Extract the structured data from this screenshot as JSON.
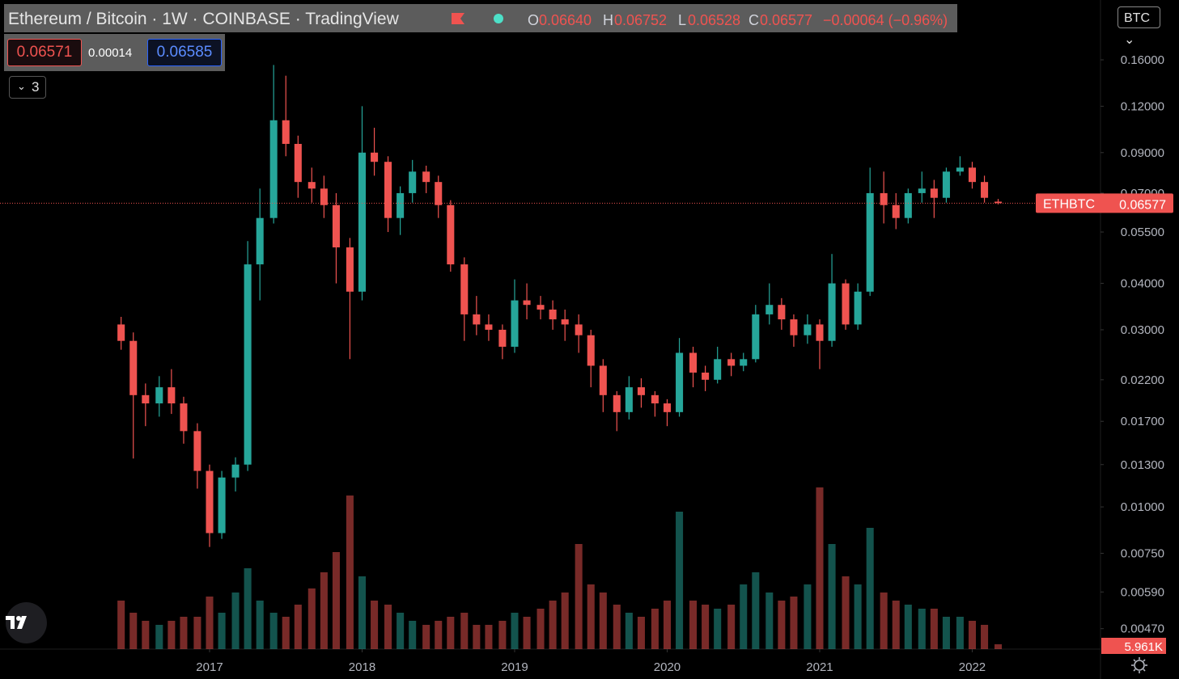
{
  "legend": {
    "title": "Ethereum / Bitcoin · 1W · COINBASE · TradingView",
    "open_key": "O",
    "open": "0.06640",
    "high_key": "H",
    "high": "0.06752",
    "low_key": "L",
    "low": "0.06528",
    "close_key": "C",
    "close": "0.06577",
    "change": "−0.00064 (−0.96%)"
  },
  "trade": {
    "sell": "0.06571",
    "spread": "0.00014",
    "buy": "0.06585"
  },
  "indicators_count": "3",
  "currency": "BTC",
  "symbol_label": "ETHBTC",
  "chart_data": {
    "type": "candlestick",
    "log_scale": true,
    "up_color": "#26a69a",
    "down_color": "#ef5350",
    "x": [
      2016.42,
      2016.5,
      2016.58,
      2016.67,
      2016.75,
      2016.83,
      2016.92,
      2017,
      2017.08,
      2017.17,
      2017.25,
      2017.33,
      2017.42,
      2017.5,
      2017.58,
      2017.67,
      2017.75,
      2017.83,
      2017.92,
      2018,
      2018.08,
      2018.17,
      2018.25,
      2018.33,
      2018.42,
      2018.5,
      2018.58,
      2018.67,
      2018.75,
      2018.83,
      2018.92,
      2019,
      2019.08,
      2019.17,
      2019.25,
      2019.33,
      2019.42,
      2019.5,
      2019.58,
      2019.67,
      2019.75,
      2019.83,
      2019.92,
      2020,
      2020.08,
      2020.17,
      2020.25,
      2020.33,
      2020.42,
      2020.5,
      2020.58,
      2020.67,
      2020.75,
      2020.83,
      2020.92,
      2021,
      2021.08,
      2021.17,
      2021.25,
      2021.33,
      2021.42,
      2021.5,
      2021.58,
      2021.67,
      2021.75,
      2021.83,
      2021.92,
      2022,
      2022.08,
      2022.17
    ],
    "open": [
      0.031,
      0.028,
      0.02,
      0.019,
      0.021,
      0.019,
      0.016,
      0.0125,
      0.0085,
      0.012,
      0.013,
      0.045,
      0.06,
      0.11,
      0.095,
      0.075,
      0.072,
      0.065,
      0.05,
      0.038,
      0.09,
      0.085,
      0.06,
      0.07,
      0.08,
      0.075,
      0.065,
      0.045,
      0.033,
      0.031,
      0.03,
      0.027,
      0.036,
      0.035,
      0.034,
      0.032,
      0.031,
      0.029,
      0.024,
      0.02,
      0.018,
      0.021,
      0.02,
      0.019,
      0.018,
      0.026,
      0.023,
      0.022,
      0.025,
      0.024,
      0.025,
      0.033,
      0.035,
      0.032,
      0.029,
      0.031,
      0.028,
      0.04,
      0.031,
      0.038,
      0.07,
      0.065,
      0.06,
      0.07,
      0.072,
      0.068,
      0.08,
      0.082,
      0.075,
      0.0664
    ],
    "high": [
      0.0325,
      0.0295,
      0.0215,
      0.0225,
      0.0235,
      0.0198,
      0.0168,
      0.013,
      0.0125,
      0.0136,
      0.052,
      0.072,
      0.155,
      0.145,
      0.1,
      0.082,
      0.078,
      0.07,
      0.053,
      0.12,
      0.105,
      0.088,
      0.073,
      0.086,
      0.083,
      0.078,
      0.067,
      0.047,
      0.037,
      0.033,
      0.031,
      0.041,
      0.04,
      0.037,
      0.036,
      0.034,
      0.033,
      0.03,
      0.025,
      0.0205,
      0.0225,
      0.0222,
      0.0205,
      0.0195,
      0.0285,
      0.027,
      0.024,
      0.027,
      0.026,
      0.026,
      0.035,
      0.04,
      0.0365,
      0.033,
      0.033,
      0.032,
      0.048,
      0.041,
      0.04,
      0.082,
      0.08,
      0.07,
      0.072,
      0.08,
      0.076,
      0.082,
      0.088,
      0.085,
      0.078,
      0.06752
    ],
    "low": [
      0.0265,
      0.0135,
      0.0165,
      0.0175,
      0.0178,
      0.0148,
      0.0112,
      0.0078,
      0.0082,
      0.011,
      0.0125,
      0.036,
      0.058,
      0.088,
      0.068,
      0.066,
      0.06,
      0.04,
      0.025,
      0.036,
      0.078,
      0.055,
      0.054,
      0.066,
      0.07,
      0.06,
      0.043,
      0.028,
      0.029,
      0.028,
      0.025,
      0.026,
      0.032,
      0.032,
      0.03,
      0.028,
      0.026,
      0.021,
      0.018,
      0.016,
      0.0172,
      0.0185,
      0.0175,
      0.0165,
      0.0175,
      0.021,
      0.0205,
      0.0215,
      0.0225,
      0.0232,
      0.0245,
      0.031,
      0.03,
      0.027,
      0.0275,
      0.0235,
      0.027,
      0.03,
      0.03,
      0.037,
      0.058,
      0.056,
      0.058,
      0.066,
      0.06,
      0.066,
      0.078,
      0.072,
      0.066,
      0.06528
    ],
    "close": [
      0.028,
      0.02,
      0.019,
      0.021,
      0.019,
      0.016,
      0.0125,
      0.0085,
      0.012,
      0.013,
      0.045,
      0.06,
      0.11,
      0.095,
      0.075,
      0.072,
      0.065,
      0.05,
      0.038,
      0.09,
      0.085,
      0.06,
      0.07,
      0.08,
      0.075,
      0.065,
      0.045,
      0.033,
      0.031,
      0.03,
      0.027,
      0.036,
      0.035,
      0.034,
      0.032,
      0.031,
      0.029,
      0.024,
      0.02,
      0.018,
      0.021,
      0.02,
      0.019,
      0.018,
      0.026,
      0.023,
      0.022,
      0.025,
      0.024,
      0.025,
      0.033,
      0.035,
      0.032,
      0.029,
      0.031,
      0.028,
      0.04,
      0.031,
      0.038,
      0.07,
      0.065,
      0.06,
      0.07,
      0.072,
      0.068,
      0.08,
      0.082,
      0.075,
      0.068,
      0.06577
    ],
    "volume": [
      60,
      45,
      35,
      30,
      35,
      40,
      40,
      65,
      45,
      70,
      100,
      60,
      45,
      40,
      55,
      75,
      95,
      120,
      190,
      90,
      60,
      55,
      45,
      35,
      30,
      35,
      40,
      45,
      30,
      30,
      35,
      45,
      40,
      50,
      60,
      70,
      130,
      80,
      70,
      55,
      45,
      40,
      50,
      60,
      170,
      60,
      55,
      50,
      55,
      80,
      95,
      70,
      60,
      65,
      80,
      200,
      130,
      90,
      80,
      150,
      70,
      60,
      55,
      50,
      50,
      40,
      40,
      35,
      30,
      5.961
    ],
    "volume_last_label": "5.961K",
    "vlim": [
      0,
      250
    ],
    "xlim": [
      2015.626,
      2022.841
    ],
    "xticks": [
      2017,
      2018,
      2019,
      2020,
      2021,
      2022
    ],
    "ylim": [
      0.00414,
      0.2319
    ],
    "yticks": [
      {
        "value": 0.16,
        "label": "0.16000"
      },
      {
        "value": 0.12,
        "label": "0.12000"
      },
      {
        "value": 0.09,
        "label": "0.09000"
      },
      {
        "value": 0.07,
        "label": "0.07000"
      },
      {
        "value": 0.055,
        "label": "0.05500"
      },
      {
        "value": 0.04,
        "label": "0.04000"
      },
      {
        "value": 0.03,
        "label": "0.03000"
      },
      {
        "value": 0.022,
        "label": "0.02200"
      },
      {
        "value": 0.017,
        "label": "0.01700"
      },
      {
        "value": 0.013,
        "label": "0.01300"
      },
      {
        "value": 0.01,
        "label": "0.01000"
      },
      {
        "value": 0.0075,
        "label": "0.00750"
      },
      {
        "value": 0.0059,
        "label": "0.00590"
      },
      {
        "value": 0.0047,
        "label": "0.00470"
      }
    ]
  }
}
